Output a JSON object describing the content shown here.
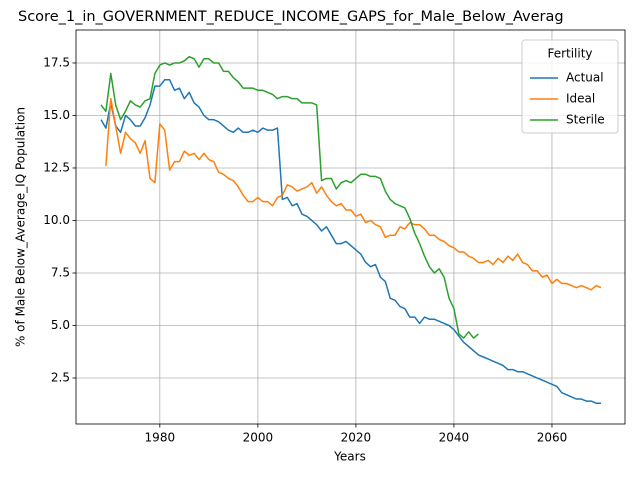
{
  "chart_data": {
    "type": "line",
    "title": "Score_1_in_GOVERNMENT_REDUCE_INCOME_GAPS_for_Male_Below_Averag",
    "xlabel": "Years",
    "ylabel": "% of Male Below_Average_IQ Population",
    "x": [
      1968,
      1969,
      1970,
      1971,
      1972,
      1973,
      1974,
      1975,
      1976,
      1977,
      1978,
      1979,
      1980,
      1981,
      1982,
      1983,
      1984,
      1985,
      1986,
      1987,
      1988,
      1989,
      1990,
      1991,
      1992,
      1993,
      1994,
      1995,
      1996,
      1997,
      1998,
      1999,
      2000,
      2001,
      2002,
      2003,
      2004,
      2005,
      2006,
      2007,
      2008,
      2009,
      2010,
      2011,
      2012,
      2013,
      2014,
      2015,
      2016,
      2017,
      2018,
      2019,
      2020,
      2021,
      2022,
      2023,
      2024,
      2025,
      2026,
      2027,
      2028,
      2029,
      2030,
      2031,
      2032,
      2033,
      2034,
      2035,
      2036,
      2037,
      2038,
      2039,
      2040,
      2041,
      2042,
      2043,
      2044,
      2045,
      2046,
      2047,
      2048,
      2049,
      2050,
      2051,
      2052,
      2053,
      2054,
      2055,
      2056,
      2057,
      2058,
      2059,
      2060,
      2061,
      2062,
      2063,
      2064,
      2065,
      2066,
      2067,
      2068,
      2069,
      2070
    ],
    "series": [
      {
        "name": "Actual",
        "color": "#1f77b4",
        "values": [
          14.8,
          14.4,
          15.6,
          14.5,
          14.2,
          15.0,
          14.8,
          14.5,
          14.5,
          14.9,
          15.5,
          16.4,
          16.4,
          16.7,
          16.7,
          16.2,
          16.3,
          15.8,
          16.1,
          15.6,
          15.4,
          15.0,
          14.8,
          14.8,
          14.7,
          14.5,
          14.3,
          14.2,
          14.4,
          14.2,
          14.2,
          14.3,
          14.2,
          14.4,
          14.3,
          14.3,
          14.4,
          11.0,
          11.1,
          10.7,
          10.8,
          10.3,
          10.2,
          10.0,
          9.8,
          9.5,
          9.7,
          9.3,
          8.9,
          8.9,
          9.0,
          8.8,
          8.6,
          8.4,
          8.0,
          7.8,
          7.9,
          7.3,
          7.1,
          6.3,
          6.2,
          5.9,
          5.8,
          5.4,
          5.4,
          5.1,
          5.4,
          5.3,
          5.3,
          5.2,
          5.1,
          5.0,
          4.8,
          4.5,
          4.2,
          4.0,
          3.8,
          3.6,
          3.5,
          3.4,
          3.3,
          3.2,
          3.1,
          2.9,
          2.9,
          2.8,
          2.8,
          2.7,
          2.6,
          2.5,
          2.4,
          2.3,
          2.2,
          2.1,
          1.8,
          1.7,
          1.6,
          1.5,
          1.5,
          1.4,
          1.4,
          1.3,
          1.3
        ]
      },
      {
        "name": "Ideal",
        "color": "#ff7f0e",
        "values": [
          null,
          12.6,
          15.8,
          14.5,
          13.2,
          14.2,
          13.9,
          13.7,
          13.2,
          13.8,
          12.0,
          11.8,
          14.6,
          14.3,
          12.4,
          12.8,
          12.8,
          13.3,
          13.1,
          13.2,
          12.9,
          13.2,
          12.9,
          12.8,
          12.3,
          12.2,
          12.0,
          11.9,
          11.6,
          11.2,
          10.9,
          10.9,
          11.1,
          10.9,
          10.9,
          10.7,
          11.1,
          11.2,
          11.7,
          11.6,
          11.4,
          11.5,
          11.6,
          11.8,
          11.3,
          11.6,
          11.2,
          10.9,
          10.7,
          10.8,
          10.5,
          10.5,
          10.2,
          10.3,
          9.9,
          10.0,
          9.8,
          9.7,
          9.2,
          9.3,
          9.3,
          9.7,
          9.6,
          9.9,
          9.8,
          9.8,
          9.6,
          9.3,
          9.3,
          9.1,
          9.0,
          8.8,
          8.7,
          8.5,
          8.5,
          8.3,
          8.2,
          8.0,
          8.0,
          8.1,
          7.9,
          8.2,
          8.0,
          8.3,
          8.1,
          8.4,
          8.0,
          7.9,
          7.6,
          7.6,
          7.3,
          7.4,
          7.0,
          7.2,
          7.0,
          7.0,
          6.9,
          6.8,
          6.9,
          6.8,
          6.7,
          6.9,
          6.8
        ]
      },
      {
        "name": "Sterile",
        "color": "#2ca02c",
        "values": [
          15.5,
          15.2,
          17.0,
          15.5,
          14.8,
          15.2,
          15.7,
          15.5,
          15.4,
          15.7,
          15.8,
          17.0,
          17.4,
          17.5,
          17.4,
          17.5,
          17.5,
          17.6,
          17.8,
          17.7,
          17.3,
          17.7,
          17.7,
          17.5,
          17.5,
          17.1,
          17.1,
          16.8,
          16.6,
          16.3,
          16.3,
          16.3,
          16.2,
          16.2,
          16.1,
          16.0,
          15.8,
          15.9,
          15.9,
          15.8,
          15.8,
          15.6,
          15.6,
          15.6,
          15.5,
          11.9,
          12.0,
          12.0,
          11.5,
          11.8,
          11.9,
          11.8,
          12.0,
          12.2,
          12.2,
          12.1,
          12.1,
          12.0,
          11.4,
          11.0,
          10.8,
          10.7,
          10.6,
          10.1,
          9.4,
          8.9,
          8.3,
          7.8,
          7.5,
          7.7,
          7.3,
          6.3,
          5.8,
          4.6,
          4.4,
          4.7,
          4.4,
          4.6,
          null,
          null,
          null,
          null,
          null,
          null,
          null,
          null,
          null,
          null,
          null,
          null,
          null,
          null,
          null,
          null,
          null,
          null,
          null,
          null,
          null,
          null,
          null,
          null,
          null
        ]
      }
    ],
    "xlim": [
      1962.9,
      2074.9
    ],
    "xticks": [
      1980,
      2000,
      2020,
      2040,
      2060
    ],
    "ylim": [
      0.31,
      19.07
    ],
    "yticks": [
      2.5,
      {
        "value": 5,
        "label": "5.0"
      },
      7.5,
      {
        "value": 10,
        "label": "10.0"
      },
      12.5,
      {
        "value": 15,
        "label": "15.0"
      },
      17.5
    ],
    "grid": true,
    "legend_title": "Fertility",
    "legend": "upper right"
  }
}
